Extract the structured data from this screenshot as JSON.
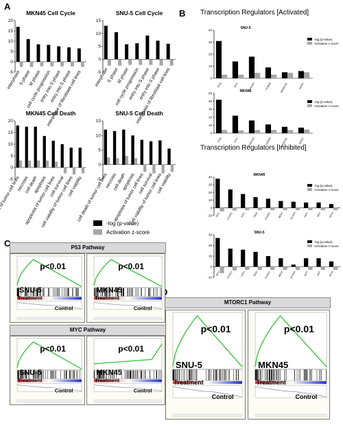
{
  "panels": {
    "a": "A",
    "b": "B",
    "c": "C",
    "d": "D"
  },
  "colors": {
    "logp": "#000000",
    "zscore": "#a6a6a6",
    "es_line": "#34c234",
    "pos": "#e0202a",
    "neg": "#2030c0"
  },
  "legend_a": {
    "logp": "-log (p-value)",
    "zscore": "Activation z-score"
  },
  "legend_b": {
    "logp": "-log (p-value)",
    "zscore": "Activation z-score"
  },
  "section_b_activated": "Transcription Regulators [Activated]",
  "section_b_inhibited": "Transcription Regulators [Inhibited]",
  "chart_data": [
    {
      "type": "bar",
      "title": "MKN45 Cell Cycle",
      "categories": [
        "interphase",
        "S phase",
        "M phase",
        "cell cycle progression",
        "entry into S phase",
        "entry into S phase",
        "interphase of fibroblast cell lines"
      ],
      "ylim": [
        -5,
        20
      ],
      "yticks": [
        "-5",
        "0",
        "5",
        "10",
        "15",
        "20"
      ],
      "series": [
        {
          "name": "-log (p-value)",
          "values": [
            17,
            11,
            8.5,
            8.2,
            7.5,
            7,
            6.5
          ]
        },
        {
          "name": "Activation z-score",
          "values": [
            -2.5,
            -2.5,
            -2.2,
            -2.2,
            -2.2,
            -2.2,
            -2.5
          ]
        }
      ]
    },
    {
      "type": "bar",
      "title": "SNU-5 Cell Cycle",
      "categories": [
        "interphase",
        "S phase",
        "M phase",
        "cell cycle progression",
        "entry into S phase",
        "entry into S phase",
        "interphase of fibroblast cell lines"
      ],
      "ylim": [
        -5,
        15
      ],
      "yticks": [
        "-5",
        "0",
        "5",
        "10",
        "15"
      ],
      "series": [
        {
          "name": "-log (p-value)",
          "values": [
            13,
            10.5,
            5.8,
            6.2,
            9.2,
            7.2,
            6
          ]
        },
        {
          "name": "Activation z-score",
          "values": [
            -2.5,
            -2.5,
            -2.2,
            -2.2,
            -2.2,
            -2.5,
            -2.5
          ]
        }
      ]
    },
    {
      "type": "bar",
      "title": "MKN45 Cell Death",
      "categories": [
        "cell death of tumor cell lines",
        "necrosis",
        "cell death",
        "apoptosis",
        "apoptosis of tumor cell lines",
        "cell survival",
        "cell viability of tumor cell lines",
        "cell viability"
      ],
      "ylim": [
        -5,
        20
      ],
      "yticks": [
        "-5",
        "0",
        "5",
        "10",
        "15",
        "20"
      ],
      "series": [
        {
          "name": "-log (p-value)",
          "values": [
            18,
            17.5,
            17.5,
            13.5,
            11.5,
            10,
            8.5,
            8.5
          ]
        },
        {
          "name": "Activation z-score",
          "values": [
            3,
            3,
            3,
            3,
            2.5,
            -2.5,
            -3,
            -2.5
          ]
        }
      ]
    },
    {
      "type": "bar",
      "title": "SNU-5 Cell Death",
      "categories": [
        "cell death of tumor cell lines",
        "necrosis",
        "cell death",
        "apoptosis",
        "apoptosis of tumor cell lines",
        "cell survival",
        "cell viability of tumor cell lines",
        "cell viability"
      ],
      "ylim": [
        -5,
        15
      ],
      "yticks": [
        "-5",
        "0",
        "5",
        "10",
        "15"
      ],
      "series": [
        {
          "name": "-log (p-value)",
          "values": [
            12,
            11.5,
            12,
            10,
            8.5,
            8,
            8.3,
            5.5
          ]
        },
        {
          "name": "Activation z-score",
          "values": [
            2.5,
            2.2,
            3,
            2.2,
            -2.5,
            -3,
            -3,
            -2.5
          ]
        }
      ]
    },
    {
      "type": "bar",
      "title": "SNU-5",
      "categories": [
        "TP53",
        "MYC",
        "CDKN2A",
        "KDM5B",
        "SMARCB1",
        "GATA1"
      ],
      "ylim": [
        0,
        40
      ],
      "yticks": [
        "0",
        "10",
        "20",
        "30",
        "40"
      ],
      "series": [
        {
          "name": "-log (p-value)",
          "values": [
            31,
            14,
            18,
            9,
            5,
            6
          ]
        },
        {
          "name": "Activation z-score",
          "values": [
            3,
            3,
            4.5,
            3,
            4.5,
            5
          ]
        }
      ]
    },
    {
      "type": "bar",
      "title": "MKN45",
      "categories": [
        "TP53",
        "MYC",
        "CDKN2A",
        "KDM5B",
        "SMARCB1",
        "GATA1"
      ],
      "ylim": [
        0,
        50
      ],
      "yticks": [
        "0",
        "10",
        "20",
        "30",
        "40",
        "50"
      ],
      "series": [
        {
          "name": "-log (p-value)",
          "values": [
            42,
            22,
            16,
            11,
            8,
            7
          ]
        },
        {
          "name": "Activation z-score",
          "values": [
            4,
            3.5,
            4,
            4,
            4,
            4.5
          ]
        }
      ]
    },
    {
      "type": "bar",
      "title": "MKN45",
      "categories": [
        "MYC",
        "CCND1",
        "E2F1",
        "TBX2",
        "FOXM1",
        "MED1",
        "NCOA3",
        "YAP1",
        "IRF7",
        "NFYA"
      ],
      "ylim": [
        -10,
        40
      ],
      "yticks": [
        "-10",
        "0",
        "10",
        "20",
        "30",
        "40"
      ],
      "series": [
        {
          "name": "-log (p-value)",
          "values": [
            38,
            24,
            18,
            14,
            12,
            9,
            8,
            7,
            7,
            5
          ]
        },
        {
          "name": "Activation z-score",
          "values": [
            -4.5,
            -3.5,
            -3,
            -3,
            -3,
            -3,
            -3,
            -3,
            -3,
            -3
          ]
        }
      ]
    },
    {
      "type": "bar",
      "title": "SNU-5",
      "categories": [
        "MYC",
        "CCND1",
        "E2F1",
        "TBX2",
        "FOXM1",
        "MED1",
        "NCOA3",
        "YAP1",
        "IRF7",
        "NFYA"
      ],
      "ylim": [
        -10,
        30
      ],
      "yticks": [
        "-10",
        "0",
        "10",
        "20",
        "30"
      ],
      "series": [
        {
          "name": "-log (p-value)",
          "values": [
            27,
            17,
            16,
            14,
            10,
            8,
            2,
            8,
            8,
            5
          ]
        },
        {
          "name": "Activation z-score",
          "values": [
            -6,
            -3.5,
            -3,
            -3,
            -3,
            -3,
            -3,
            -3,
            -3,
            -3
          ]
        }
      ]
    }
  ],
  "gsea": {
    "p53": {
      "title": "P53 Pathway",
      "left": {
        "cell": "SNU-5",
        "p": "p<0.01",
        "treatment": "Treatment",
        "control": "Control"
      },
      "right": {
        "cell": "MKN45",
        "p": "p<0.01",
        "treatment": "Treatment",
        "control": "Control"
      }
    },
    "myc": {
      "title": "MYC Pathway",
      "left": {
        "cell": "SNU-5",
        "p": "p<0.01",
        "treatment": "Treatment",
        "control": "Control"
      },
      "right": {
        "cell": "MKN45",
        "p": "p<0.01",
        "treatment": "Treatment",
        "control": "Control"
      }
    },
    "mtorc1": {
      "title": "MTORC1 Pathway",
      "left": {
        "cell": "SNU-5",
        "p": "p<0.01",
        "treatment": "Treatment",
        "control": "Control"
      },
      "right": {
        "cell": "MKN45",
        "p": "p<0.01",
        "treatment": "Treatment",
        "control": "Control"
      }
    }
  }
}
